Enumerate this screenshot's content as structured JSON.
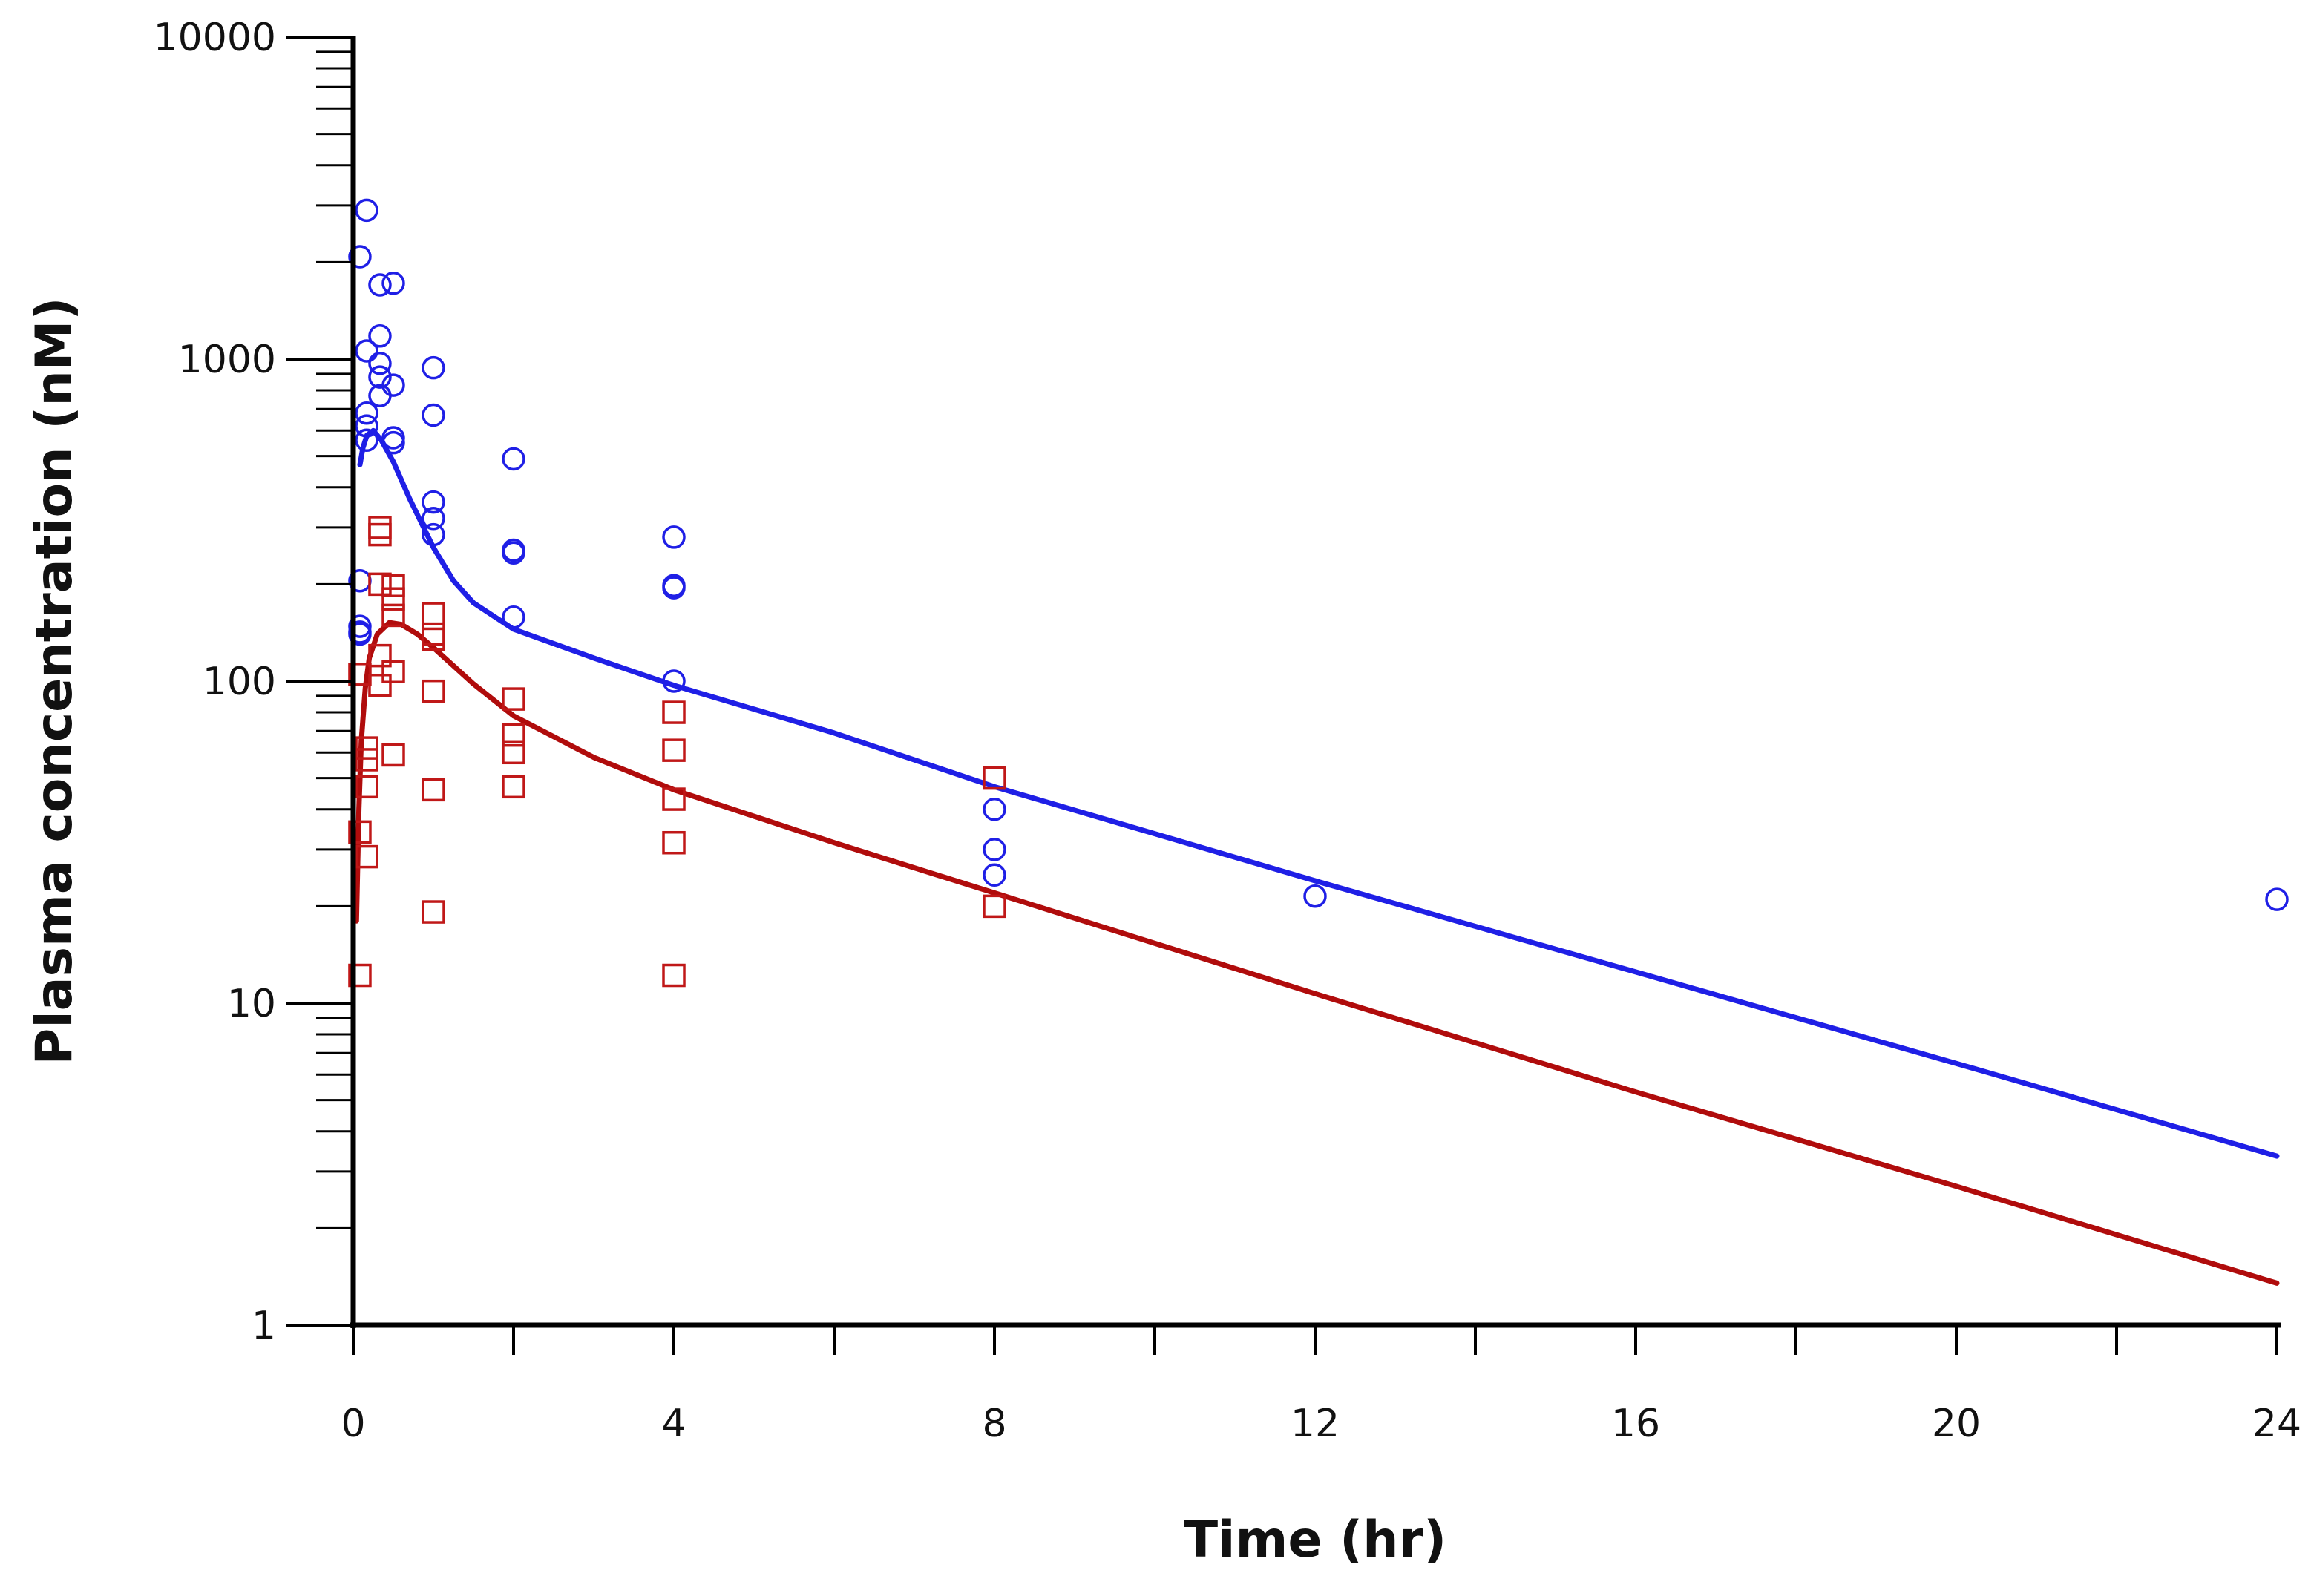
{
  "chart_data": {
    "type": "scatter",
    "title": "",
    "xlabel": "Time (hr)",
    "ylabel": "Plasma concentration (nM)",
    "x_scale": "linear",
    "y_scale": "log",
    "xlim": [
      0,
      24
    ],
    "ylim": [
      1,
      10000
    ],
    "x_ticks": [
      0,
      4,
      8,
      12,
      16,
      20,
      24
    ],
    "x_tick_labels": [
      "0",
      "4",
      "8",
      "12",
      "16",
      "20",
      "24"
    ],
    "y_ticks": [
      1,
      10,
      100,
      1000,
      10000
    ],
    "y_tick_labels": [
      "1",
      "10",
      "100",
      "1000",
      "10000"
    ],
    "grid": false,
    "legend": "none",
    "series": [
      {
        "kind": "observed",
        "marker": "circle",
        "color": "#1f1fe6",
        "points": [
          [
            0.083,
            2080
          ],
          [
            0.083,
            205
          ],
          [
            0.083,
            148
          ],
          [
            0.083,
            142
          ],
          [
            0.083,
            140
          ],
          [
            0.167,
            2900
          ],
          [
            0.167,
            1060
          ],
          [
            0.167,
            680
          ],
          [
            0.167,
            620
          ],
          [
            0.167,
            560
          ],
          [
            0.333,
            1700
          ],
          [
            0.333,
            1180
          ],
          [
            0.333,
            970
          ],
          [
            0.333,
            880
          ],
          [
            0.333,
            770
          ],
          [
            0.5,
            1720
          ],
          [
            0.5,
            830
          ],
          [
            0.5,
            570
          ],
          [
            0.5,
            550
          ],
          [
            1,
            940
          ],
          [
            1,
            670
          ],
          [
            1,
            360
          ],
          [
            1,
            320
          ],
          [
            1,
            285
          ],
          [
            2,
            490
          ],
          [
            2,
            255
          ],
          [
            2,
            250
          ],
          [
            2,
            158
          ],
          [
            4,
            280
          ],
          [
            4,
            198
          ],
          [
            4,
            195
          ],
          [
            4,
            100
          ],
          [
            8,
            40
          ],
          [
            8,
            30
          ],
          [
            8,
            25
          ],
          [
            12,
            21.5
          ],
          [
            24,
            21
          ]
        ]
      },
      {
        "kind": "observed",
        "marker": "square",
        "color": "#c01818",
        "points": [
          [
            0.083,
            105
          ],
          [
            0.083,
            34
          ],
          [
            0.083,
            12.2
          ],
          [
            0.167,
            62
          ],
          [
            0.167,
            57
          ],
          [
            0.167,
            47
          ],
          [
            0.167,
            28.5
          ],
          [
            0.333,
            300
          ],
          [
            0.333,
            285
          ],
          [
            0.333,
            200
          ],
          [
            0.333,
            120
          ],
          [
            0.333,
            97
          ],
          [
            0.5,
            198
          ],
          [
            0.5,
            180
          ],
          [
            0.5,
            160
          ],
          [
            0.5,
            107
          ],
          [
            0.5,
            59
          ],
          [
            1,
            162
          ],
          [
            1,
            140
          ],
          [
            1,
            135
          ],
          [
            1,
            93
          ],
          [
            1,
            46
          ],
          [
            1,
            19.2
          ],
          [
            2,
            88
          ],
          [
            2,
            68
          ],
          [
            2,
            60
          ],
          [
            2,
            47
          ],
          [
            4,
            80
          ],
          [
            4,
            61
          ],
          [
            4,
            43
          ],
          [
            4,
            31.5
          ],
          [
            4,
            12.2
          ],
          [
            8,
            50
          ],
          [
            8,
            20
          ]
        ]
      },
      {
        "kind": "model-fit",
        "marker": "line",
        "color": "#1f1fe6",
        "points": [
          [
            0.083,
            470
          ],
          [
            0.12,
            530
          ],
          [
            0.17,
            580
          ],
          [
            0.25,
            600
          ],
          [
            0.35,
            560
          ],
          [
            0.5,
            480
          ],
          [
            0.7,
            370
          ],
          [
            1,
            260
          ],
          [
            1.25,
            205
          ],
          [
            1.5,
            175
          ],
          [
            2,
            145
          ],
          [
            3,
            118
          ],
          [
            4,
            97
          ],
          [
            6,
            69
          ],
          [
            8,
            47
          ],
          [
            12,
            24
          ],
          [
            16,
            12.5
          ],
          [
            20,
            6.5
          ],
          [
            24,
            3.35
          ]
        ]
      },
      {
        "kind": "model-fit",
        "marker": "line",
        "color": "#b00c0c",
        "points": [
          [
            0.04,
            18
          ],
          [
            0.07,
            40
          ],
          [
            0.1,
            65
          ],
          [
            0.15,
            95
          ],
          [
            0.2,
            118
          ],
          [
            0.3,
            140
          ],
          [
            0.45,
            152
          ],
          [
            0.6,
            150
          ],
          [
            0.8,
            140
          ],
          [
            1,
            127
          ],
          [
            1.5,
            98
          ],
          [
            2,
            78
          ],
          [
            3,
            58
          ],
          [
            4,
            46
          ],
          [
            6,
            31.5
          ],
          [
            8,
            22
          ],
          [
            12,
            10.7
          ],
          [
            16,
            5.3
          ],
          [
            20,
            2.7
          ],
          [
            24,
            1.35
          ]
        ]
      }
    ]
  }
}
